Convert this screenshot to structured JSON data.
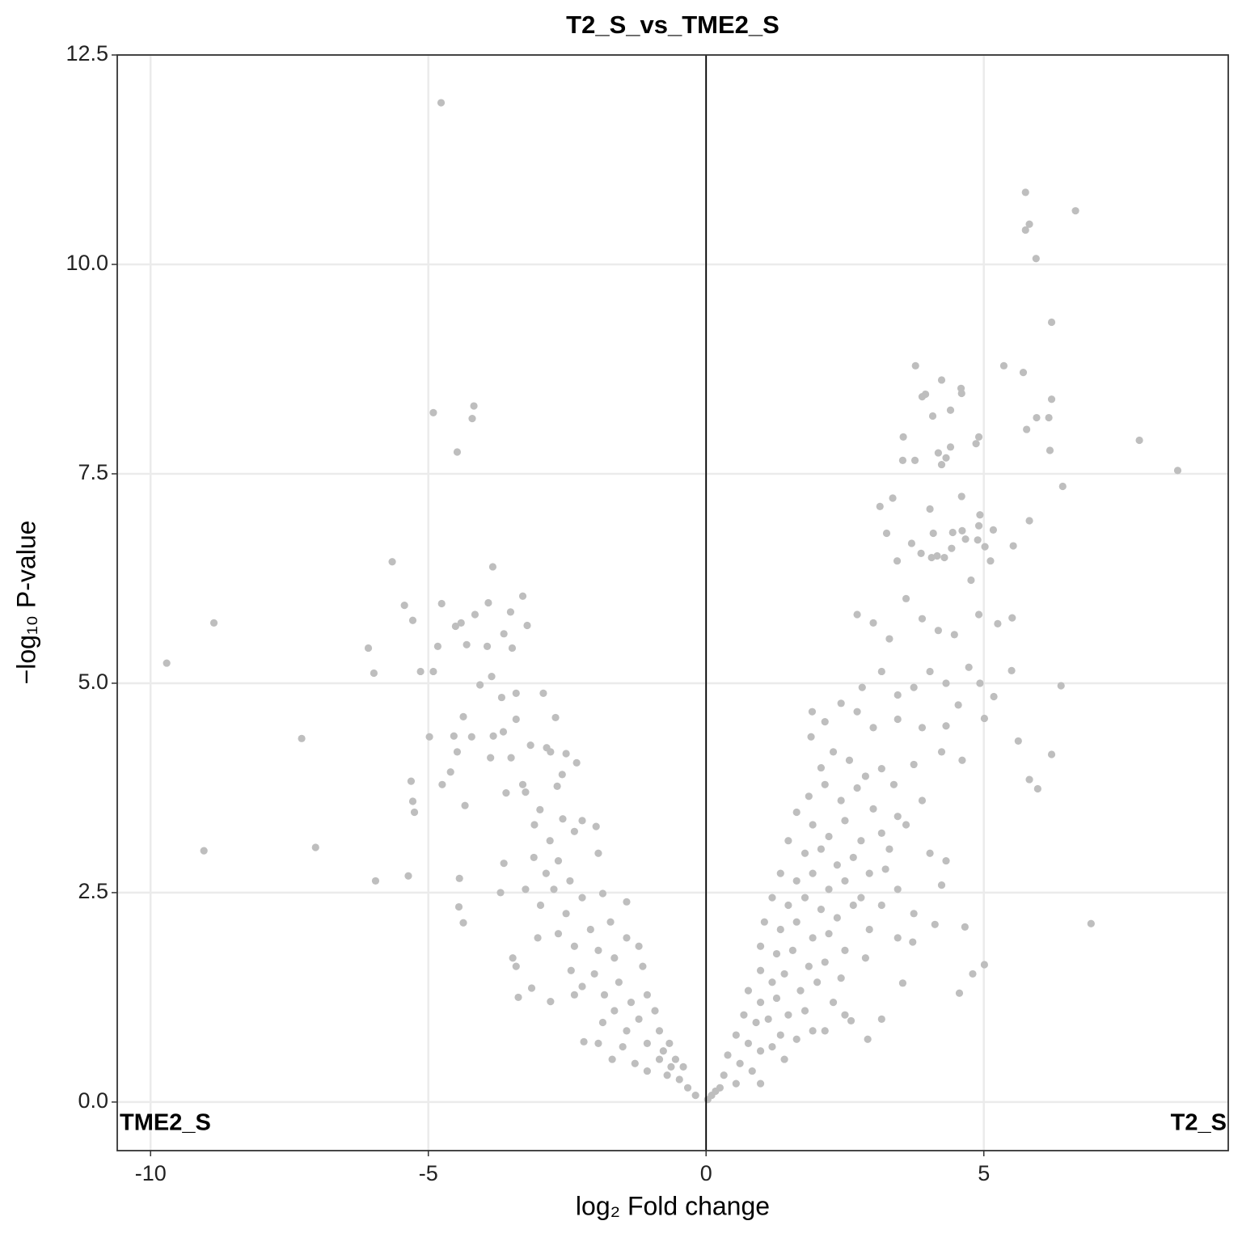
{
  "chart_data": {
    "type": "scatter",
    "title": "T2_S_vs_TME2_S",
    "x_label": "log₂ Fold change",
    "y_label": "−log₁₀ P-value",
    "annotations": [
      "TME2_S",
      "T2_S"
    ],
    "color": "#bebebe",
    "grid": true,
    "vline": 0,
    "xlim": [
      -10.6,
      9.4
    ],
    "ylim": [
      -0.58,
      12.5
    ],
    "xticks": [
      -10,
      -5,
      0,
      5
    ],
    "yticks": [
      {
        "value": 0,
        "label": "0.0"
      },
      2.5,
      {
        "value": 5,
        "label": "5.0"
      },
      7.5,
      {
        "value": 10,
        "label": "10.0"
      },
      12.5
    ],
    "x": [
      -4.77,
      -4.91,
      -4.18,
      -4.21,
      -4.48,
      -9.71,
      -8.86,
      -9.04,
      -7.28,
      -7.03,
      -6.08,
      -5.98,
      -5.95,
      -5.65,
      -5.43,
      -5.28,
      -5.14,
      -4.91,
      -4.83,
      -4.76,
      -4.98,
      -5.31,
      -5.28,
      -5.25,
      -5.36,
      -4.75,
      -4.6,
      -4.54,
      -4.48,
      -4.51,
      -4.41,
      -4.31,
      -4.37,
      -4.34,
      -4.44,
      -4.45,
      -4.37,
      -4.22,
      -3.84,
      -3.92,
      -4.16,
      -4.07,
      -3.86,
      -3.94,
      -3.64,
      -3.52,
      -3.3,
      -3.22,
      -3.49,
      -3.68,
      -3.42,
      -3.42,
      -3.83,
      -3.65,
      -3.88,
      -3.51,
      -3.16,
      -2.93,
      -2.71,
      -2.87,
      -2.8,
      -2.52,
      -2.33,
      -2.59,
      -2.68,
      -3.6,
      -3.3,
      -3.25,
      -2.99,
      -3.64,
      -3.7,
      -3.48,
      -3.42,
      -3.14,
      -3.38,
      -2.8,
      -2.2,
      -3.09,
      -2.81,
      -2.58,
      -2.37,
      -2.23,
      -1.98,
      -3.1,
      -2.88,
      -2.66,
      -2.45,
      -1.94,
      -3.25,
      -2.98,
      -2.74,
      -2.52,
      -2.23,
      -1.86,
      -1.72,
      -1.43,
      -3.03,
      -2.66,
      -2.37,
      -2.08,
      -1.94,
      -1.65,
      -1.43,
      -1.21,
      -2.43,
      -2.23,
      -2.01,
      -1.83,
      -1.57,
      -1.35,
      -1.14,
      -2.37,
      -1.86,
      -1.65,
      -1.43,
      -1.21,
      -1.06,
      -0.92,
      -1.94,
      -1.69,
      -1.5,
      -1.28,
      -1.06,
      -0.84,
      -0.66,
      -1.06,
      -0.84,
      -0.63,
      -0.48,
      -0.33,
      -0.19,
      -0.7,
      -0.41,
      -0.77,
      -0.55,
      5.75,
      5.82,
      5.75,
      5.94,
      6.65,
      6.22,
      5.36,
      5.71,
      5.95,
      5.77,
      6.17,
      6.22,
      6.19,
      6.42,
      7.8,
      8.49,
      6.93,
      5.82,
      5.53,
      5.25,
      5.51,
      5.5,
      6.39,
      5.62,
      5.82,
      5.97,
      6.22,
      5.18,
      5.01,
      5.01,
      4.8,
      4.56,
      4.66,
      4.12,
      2.91,
      3.77,
      3.89,
      3.95,
      4.24,
      4.59,
      4.6,
      4.08,
      4.4,
      3.55,
      3.76,
      3.54,
      4.18,
      4.4,
      4.24,
      4.32,
      4.91,
      4.86,
      4.6,
      3.36,
      3.13,
      4.03,
      4.93,
      4.91,
      5.17,
      3.25,
      3.7,
      4.09,
      4.44,
      4.61,
      4.67,
      4.89,
      5.02,
      5.12,
      4.42,
      3.87,
      3.44,
      4.06,
      4.16,
      4.29,
      4.77,
      2.72,
      3.01,
      3.3,
      3.6,
      3.89,
      4.18,
      4.47,
      4.91,
      2.81,
      3.16,
      3.45,
      3.74,
      4.03,
      4.32,
      4.73,
      4.93,
      2.43,
      2.72,
      3.01,
      3.45,
      3.89,
      4.32,
      4.54,
      1.91,
      1.89,
      2.14,
      2.29,
      2.58,
      2.87,
      3.16,
      3.38,
      3.74,
      4.24,
      4.61,
      2.07,
      1.85,
      2.14,
      2.43,
      2.72,
      3.01,
      3.45,
      3.89,
      3.6,
      1.63,
      1.92,
      2.21,
      2.5,
      2.79,
      3.16,
      3.3,
      4.03,
      4.32,
      4.24,
      1.48,
      1.78,
      2.07,
      2.36,
      2.65,
      2.94,
      3.23,
      3.45,
      1.34,
      1.63,
      1.92,
      2.21,
      2.5,
      2.79,
      3.16,
      3.74,
      1.19,
      1.48,
      1.78,
      2.07,
      2.36,
      2.65,
      2.94,
      3.45,
      3.72,
      1.05,
      1.34,
      1.63,
      1.92,
      2.21,
      2.5,
      2.87,
      0.98,
      1.27,
      1.56,
      1.85,
      2.14,
      2.43,
      2.29,
      0.98,
      1.19,
      1.41,
      1.7,
      2.0,
      2.5,
      2.61,
      3.16,
      3.54,
      2.14,
      0.76,
      0.98,
      1.27,
      1.48,
      1.78,
      1.92,
      0.68,
      0.9,
      1.12,
      1.34,
      1.63,
      0.54,
      0.76,
      0.98,
      1.19,
      1.41,
      0.39,
      0.61,
      0.83,
      0.98,
      0.32,
      0.54,
      0.17,
      0.03,
      0.25,
      0.1
    ],
    "values": [
      11.93,
      8.23,
      8.31,
      8.16,
      7.76,
      5.24,
      5.72,
      3.0,
      4.34,
      3.04,
      5.42,
      5.12,
      2.64,
      6.45,
      5.93,
      5.75,
      5.14,
      5.14,
      5.44,
      5.95,
      4.36,
      3.83,
      3.59,
      3.46,
      2.7,
      3.79,
      3.94,
      4.37,
      4.18,
      5.68,
      5.72,
      5.46,
      4.6,
      3.54,
      2.67,
      2.33,
      2.14,
      4.36,
      6.39,
      5.96,
      5.82,
      4.98,
      5.08,
      5.44,
      5.59,
      5.85,
      6.04,
      5.69,
      5.42,
      4.83,
      4.88,
      4.57,
      4.37,
      4.42,
      4.11,
      4.11,
      4.26,
      4.88,
      4.59,
      4.23,
      4.18,
      4.16,
      4.05,
      3.91,
      3.77,
      3.69,
      3.79,
      3.7,
      3.49,
      2.85,
      2.5,
      1.72,
      1.62,
      1.36,
      1.25,
      1.2,
      0.72,
      3.31,
      3.12,
      3.38,
      3.23,
      3.36,
      3.29,
      2.92,
      2.73,
      2.88,
      2.64,
      2.97,
      2.54,
      2.35,
      2.54,
      2.25,
      2.44,
      2.49,
      2.15,
      2.39,
      1.96,
      2.01,
      1.86,
      2.06,
      1.81,
      1.72,
      1.96,
      1.86,
      1.57,
      1.38,
      1.53,
      1.28,
      1.43,
      1.19,
      1.62,
      1.28,
      0.95,
      1.09,
      0.85,
      0.99,
      1.28,
      1.09,
      0.7,
      0.51,
      0.66,
      0.46,
      0.7,
      0.85,
      0.7,
      0.37,
      0.51,
      0.42,
      0.27,
      0.17,
      0.08,
      0.32,
      0.42,
      0.61,
      0.51,
      10.86,
      10.48,
      10.41,
      10.07,
      10.64,
      9.31,
      8.79,
      8.71,
      8.17,
      8.03,
      8.17,
      8.39,
      7.78,
      7.35,
      7.9,
      7.54,
      2.13,
      6.94,
      6.64,
      5.71,
      5.78,
      5.15,
      4.97,
      4.31,
      3.85,
      3.74,
      4.15,
      4.84,
      4.58,
      1.64,
      1.53,
      1.3,
      2.09,
      2.12,
      0.75,
      8.79,
      8.42,
      8.45,
      8.62,
      8.52,
      8.46,
      8.19,
      8.26,
      7.94,
      7.66,
      7.66,
      7.75,
      7.82,
      7.61,
      7.69,
      7.94,
      7.86,
      7.23,
      7.21,
      7.11,
      7.08,
      7.01,
      6.88,
      6.83,
      6.79,
      6.67,
      6.79,
      6.8,
      6.82,
      6.72,
      6.71,
      6.63,
      6.46,
      6.61,
      6.55,
      6.46,
      6.5,
      6.52,
      6.5,
      6.23,
      5.82,
      5.72,
      5.53,
      6.01,
      5.77,
      5.63,
      5.58,
      5.82,
      4.95,
      5.14,
      4.86,
      4.95,
      5.14,
      5.0,
      5.19,
      5.0,
      4.76,
      4.66,
      4.47,
      4.57,
      4.47,
      4.49,
      4.74,
      4.66,
      4.36,
      4.54,
      4.18,
      4.08,
      3.89,
      3.98,
      3.79,
      4.03,
      4.18,
      4.08,
      3.99,
      3.65,
      3.79,
      3.6,
      3.75,
      3.5,
      3.41,
      3.6,
      3.31,
      3.46,
      3.31,
      3.17,
      3.36,
      3.12,
      3.21,
      3.02,
      2.97,
      2.88,
      2.59,
      3.12,
      2.97,
      3.02,
      2.83,
      2.92,
      2.73,
      2.78,
      2.54,
      2.73,
      2.64,
      2.73,
      2.54,
      2.64,
      2.44,
      2.35,
      2.25,
      2.44,
      2.35,
      2.44,
      2.3,
      2.2,
      2.35,
      2.06,
      1.96,
      1.91,
      2.15,
      2.06,
      2.15,
      1.96,
      2.01,
      1.81,
      1.72,
      1.86,
      1.77,
      1.81,
      1.62,
      1.67,
      1.48,
      1.19,
      1.57,
      1.43,
      1.53,
      1.33,
      1.43,
      1.04,
      0.97,
      0.99,
      1.42,
      0.85,
      1.33,
      1.19,
      1.24,
      1.04,
      1.09,
      0.85,
      1.04,
      0.95,
      0.99,
      0.8,
      0.75,
      0.8,
      0.7,
      0.61,
      0.66,
      0.51,
      0.56,
      0.46,
      0.37,
      0.22,
      0.32,
      0.22,
      0.13,
      0.03,
      0.17,
      0.08
    ]
  }
}
